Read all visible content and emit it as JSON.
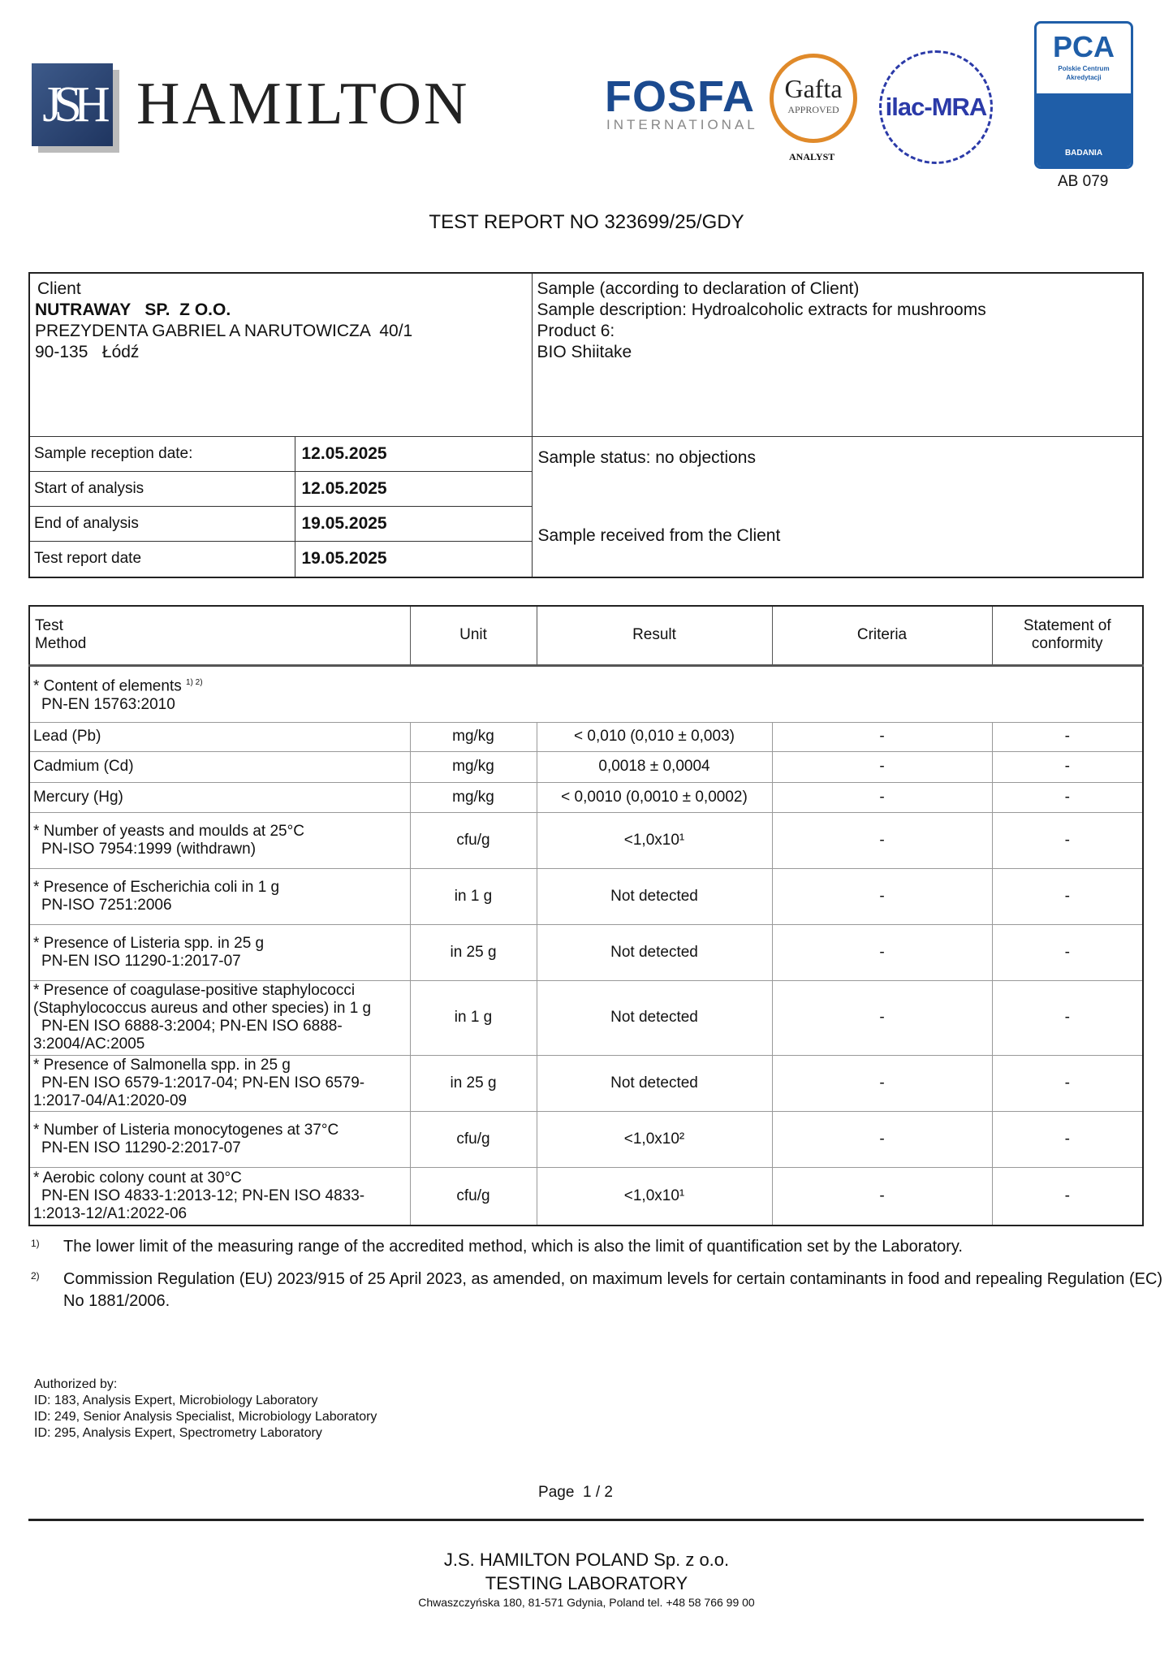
{
  "header": {
    "logo_monogram": "JSH",
    "company": "HAMILTON",
    "logos": {
      "fosfa": "FOSFA",
      "fosfa_sub": "INTERNATIONAL",
      "gafta": "Gafta",
      "gafta_sub": "APPROVED",
      "gafta_analyst": "ANALYST",
      "ilac": "ilac-MRA",
      "pca": "PCA",
      "pca_sub1": "Polskie Centrum",
      "pca_sub2": "Akredytacji",
      "pca_badania": "BADANIA"
    },
    "accreditation": "AB 079"
  },
  "title": "TEST REPORT NO 323699/25/GDY",
  "client": {
    "label": "Client",
    "name": "NUTRAWAY   SP.  Z O.O.",
    "street": "PREZYDENTA GABRIEL A NARUTOWICZA  40/1",
    "city": "90-135   Łódź"
  },
  "sample": {
    "label": "Sample (according to declaration of Client)",
    "description": "Sample description: Hydroalcoholic extracts for mushrooms",
    "product": "Product 6:",
    "name": "BIO Shiitake",
    "status": "Sample status: no objections",
    "received": "Sample received from the Client"
  },
  "dates": [
    {
      "label": "Sample reception date:",
      "value": "12.05.2025"
    },
    {
      "label": "Start of analysis",
      "value": "12.05.2025"
    },
    {
      "label": "End of analysis",
      "value": "19.05.2025"
    },
    {
      "label": "Test report date",
      "value": "19.05.2025"
    }
  ],
  "results": {
    "headers": {
      "test": "Test",
      "method": "Method",
      "unit": "Unit",
      "result": "Result",
      "criteria": "Criteria",
      "conformity1": "Statement of",
      "conformity2": "conformity"
    },
    "group": {
      "name": "* Content of elements",
      "sup": "1) 2)",
      "method": "PN-EN 15763:2010"
    },
    "rows": [
      {
        "test": "Lead (Pb)",
        "method": "",
        "unit": "mg/kg",
        "result": "< 0,010 (0,010 ± 0,003)",
        "criteria": "-",
        "conformity": "-"
      },
      {
        "test": "Cadmium (Cd)",
        "method": "",
        "unit": "mg/kg",
        "result": "0,0018 ± 0,0004",
        "criteria": "-",
        "conformity": "-"
      },
      {
        "test": "Mercury (Hg)",
        "method": "",
        "unit": "mg/kg",
        "result": "< 0,0010 (0,0010 ± 0,0002)",
        "criteria": "-",
        "conformity": "-"
      },
      {
        "test": "* Number of yeasts and moulds at 25°C",
        "method": "PN-ISO 7954:1999 (withdrawn)",
        "unit": "cfu/g",
        "result": "<1,0x10¹",
        "criteria": "-",
        "conformity": "-"
      },
      {
        "test": "* Presence of Escherichia coli in 1 g",
        "method": "PN-ISO 7251:2006",
        "unit": "in 1 g",
        "result": "Not detected",
        "criteria": "-",
        "conformity": "-"
      },
      {
        "test": "* Presence of Listeria spp. in 25 g",
        "method": "PN-EN ISO 11290-1:2017-07",
        "unit": "in 25 g",
        "result": "Not detected",
        "criteria": "-",
        "conformity": "-"
      },
      {
        "test": "* Presence of coagulase-positive staphylococci (Staphylococcus aureus and other species) in 1 g",
        "method": "PN-EN ISO 6888-3:2004; PN-EN ISO 6888-3:2004/AC:2005",
        "unit": "in 1 g",
        "result": "Not detected",
        "criteria": "-",
        "conformity": "-"
      },
      {
        "test": "* Presence of Salmonella spp. in 25 g",
        "method": "PN-EN ISO 6579-1:2017-04; PN-EN ISO 6579-1:2017-04/A1:2020-09",
        "unit": "in 25 g",
        "result": "Not detected",
        "criteria": "-",
        "conformity": "-"
      },
      {
        "test": "* Number of Listeria monocytogenes at 37°C",
        "method": "PN-EN ISO 11290-2:2017-07",
        "unit": "cfu/g",
        "result": "<1,0x10²",
        "criteria": "-",
        "conformity": "-"
      },
      {
        "test": "* Aerobic colony count at 30°C",
        "method": "PN-EN ISO 4833-1:2013-12; PN-EN ISO 4833-1:2013-12/A1:2022-06",
        "unit": "cfu/g",
        "result": "<1,0x10¹",
        "criteria": "-",
        "conformity": "-"
      }
    ]
  },
  "footnotes": [
    {
      "mark": "1)",
      "text": "The lower limit of the measuring range of the accredited method, which is also the limit of quantification set by the Laboratory."
    },
    {
      "mark": "2)",
      "text": "Commission Regulation (EU) 2023/915 of 25 April 2023, as amended, on maximum levels for certain contaminants in food and repealing Regulation (EC) No 1881/2006."
    }
  ],
  "authorized": {
    "label": "Authorized by:",
    "people": [
      "ID: 183, Analysis Expert, Microbiology Laboratory",
      "ID: 249, Senior Analysis Specialist, Microbiology Laboratory",
      "ID: 295, Analysis Expert, Spectrometry Laboratory"
    ]
  },
  "page": "Page  1 / 2",
  "footer": {
    "company": "J.S. HAMILTON POLAND Sp. z o.o.",
    "lab": "TESTING LABORATORY",
    "address": "Chwaszczyńska 180, 81-571 Gdynia, Poland tel. +48 58 766 99 00"
  }
}
